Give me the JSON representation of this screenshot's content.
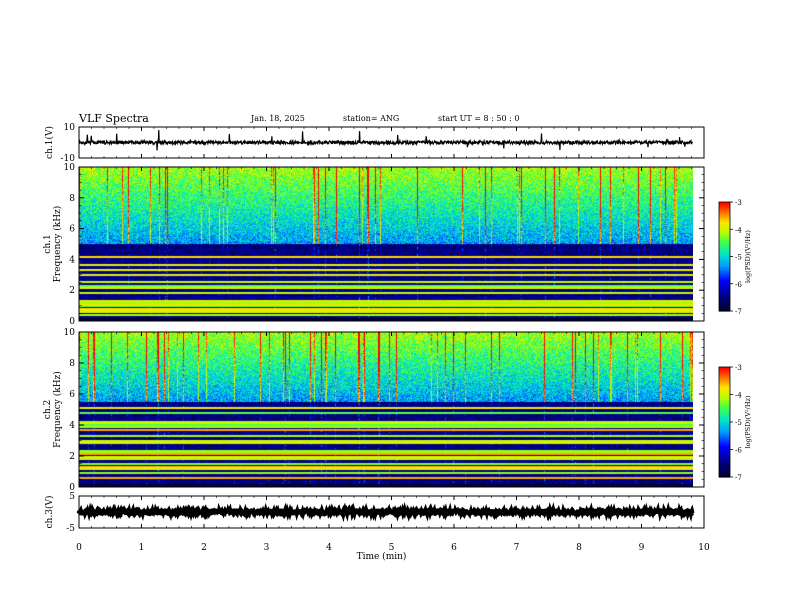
{
  "header": {
    "title": "VLF Spectra",
    "date": "Jan. 18, 2025",
    "station": "station= ANG",
    "start": "start  UT =  8 : 50 : 0"
  },
  "chart_data": [
    {
      "type": "line",
      "panel": "ch1-waveform",
      "ylabel": "ch.1(V)",
      "ylim": [
        -10,
        10
      ],
      "yticks": [
        "10",
        "-10"
      ],
      "xlim": [
        0,
        10
      ],
      "baseline": 0,
      "color": "#000000"
    },
    {
      "type": "heatmap",
      "panel": "ch1-spectrogram",
      "ylabel": "ch.1\nFrequency (kHz)",
      "ylabel_lines": [
        "ch.1",
        "Frequency (kHz)"
      ],
      "ylim": [
        0,
        10
      ],
      "yticks": [
        "0",
        "2",
        "4",
        "6",
        "8",
        "10"
      ],
      "xlim": [
        0,
        10
      ],
      "colorbar": {
        "label": "log(PSD)(V²/Hz)",
        "range": [
          -7,
          -3
        ],
        "ticks": [
          "-3",
          "-4",
          "-5",
          "-6",
          "-7"
        ]
      },
      "noise_floor_khz": 5.0
    },
    {
      "type": "heatmap",
      "panel": "ch2-spectrogram",
      "ylabel": "ch.2\nFrequency (kHz)",
      "ylabel_lines": [
        "ch.2",
        "Frequency (kHz)"
      ],
      "ylim": [
        0,
        10
      ],
      "yticks": [
        "0",
        "2",
        "4",
        "6",
        "8",
        "10"
      ],
      "xlim": [
        0,
        10
      ],
      "colorbar": {
        "label": "log(PSD)(V²/Hz)",
        "range": [
          -7,
          -3
        ],
        "ticks": [
          "-3",
          "-4",
          "-5",
          "-6",
          "-7"
        ]
      },
      "noise_floor_khz": 5.5
    },
    {
      "type": "line",
      "panel": "ch3-waveform",
      "ylabel": "ch.3(V)",
      "ylim": [
        -5,
        5
      ],
      "yticks": [
        "5",
        "-5"
      ],
      "xlim": [
        0,
        10
      ],
      "baseline": 0,
      "color": "#000000"
    }
  ],
  "xaxis": {
    "label": "Time (min)",
    "range": [
      0,
      10
    ],
    "ticks": [
      "0",
      "1",
      "2",
      "3",
      "4",
      "5",
      "6",
      "7",
      "8",
      "9",
      "10"
    ],
    "data_end": 9.82
  },
  "colors": {
    "colormap": [
      "#000000",
      "#00008b",
      "#0000ff",
      "#00bfff",
      "#00ff80",
      "#80ff00",
      "#ffff00",
      "#ff8000",
      "#ff0000",
      "#ffffff"
    ]
  }
}
